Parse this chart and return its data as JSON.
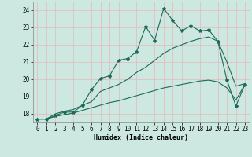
{
  "title": "",
  "xlabel": "Humidex (Indice chaleur)",
  "bg_color": "#cce8e0",
  "grid_color": "#b8d8d0",
  "line_color": "#1a6b5a",
  "xlim": [
    -0.5,
    23.5
  ],
  "ylim": [
    17.5,
    24.5
  ],
  "xticks": [
    0,
    1,
    2,
    3,
    4,
    5,
    6,
    7,
    8,
    9,
    10,
    11,
    12,
    13,
    14,
    15,
    16,
    17,
    18,
    19,
    20,
    21,
    22,
    23
  ],
  "yticks": [
    18,
    19,
    20,
    21,
    22,
    23,
    24
  ],
  "series1_x": [
    0,
    1,
    2,
    3,
    4,
    5,
    6,
    7,
    8,
    9,
    10,
    11,
    12,
    13,
    14,
    15,
    16,
    17,
    18,
    19,
    20,
    21,
    22,
    23
  ],
  "series1_y": [
    17.7,
    17.7,
    17.9,
    18.1,
    18.1,
    18.5,
    19.4,
    20.05,
    20.2,
    21.1,
    21.2,
    21.6,
    23.05,
    22.25,
    24.1,
    23.4,
    22.8,
    23.1,
    22.8,
    22.85,
    22.2,
    19.95,
    18.45,
    19.7
  ],
  "series2_x": [
    0,
    1,
    2,
    3,
    4,
    5,
    6,
    7,
    8,
    9,
    10,
    11,
    12,
    13,
    14,
    15,
    16,
    17,
    18,
    19,
    20,
    21,
    22,
    23
  ],
  "series2_y": [
    17.7,
    17.7,
    18.0,
    18.15,
    18.25,
    18.5,
    18.7,
    19.3,
    19.5,
    19.7,
    20.0,
    20.4,
    20.7,
    21.1,
    21.5,
    21.8,
    22.0,
    22.2,
    22.35,
    22.45,
    22.2,
    21.0,
    19.6,
    19.75
  ],
  "series3_x": [
    0,
    1,
    2,
    3,
    4,
    5,
    6,
    7,
    8,
    9,
    10,
    11,
    12,
    13,
    14,
    15,
    16,
    17,
    18,
    19,
    20,
    21,
    22,
    23
  ],
  "series3_y": [
    17.7,
    17.7,
    17.85,
    17.95,
    18.05,
    18.2,
    18.35,
    18.5,
    18.65,
    18.75,
    18.9,
    19.05,
    19.2,
    19.35,
    19.5,
    19.6,
    19.7,
    19.8,
    19.9,
    19.95,
    19.85,
    19.5,
    18.8,
    19.7
  ],
  "xlabel_fontsize": 6.0,
  "tick_fontsize": 5.5
}
